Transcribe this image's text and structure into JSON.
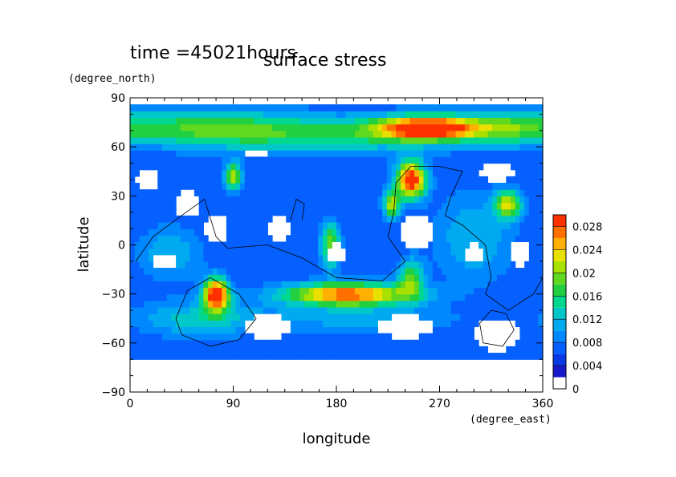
{
  "chart_data": {
    "type": "heatmap",
    "time_label": "time =45021hours",
    "title": "surface stress",
    "xlabel": "longitude",
    "ylabel": "latitude",
    "x_unit": "(degree_east)",
    "y_unit": "(degree_north)",
    "xlim": [
      0,
      360
    ],
    "ylim": [
      -90,
      90
    ],
    "x_ticks": [
      0,
      90,
      180,
      270,
      360
    ],
    "y_ticks": [
      -90,
      -60,
      -30,
      0,
      30,
      60,
      90
    ],
    "colorbar": {
      "min": 0,
      "max": 0.03,
      "tick_labels": [
        "0",
        "0.004",
        "0.008",
        "0.012",
        "0.016",
        "0.02",
        "0.024",
        "0.028"
      ],
      "tick_values": [
        0,
        0.004,
        0.008,
        0.012,
        0.016,
        0.02,
        0.024,
        0.028
      ],
      "colors": [
        "#ffffff",
        "#1818cc",
        "#0a3ae6",
        "#0560ff",
        "#0088ff",
        "#00aaf0",
        "#00c8c8",
        "#00d890",
        "#20d040",
        "#60d820",
        "#a8e000",
        "#e8e000",
        "#ffb000",
        "#ff7000",
        "#ff3000"
      ]
    },
    "data_extent_lat": [
      -70,
      85
    ],
    "field": {
      "background": 0.006,
      "blobs": [
        {
          "lon": 260,
          "lat": 72,
          "slon": 30,
          "slat": 5,
          "amp": 0.024
        },
        {
          "lon": 180,
          "lat": 68,
          "slon": 80,
          "slat": 8,
          "amp": 0.01
        },
        {
          "lon": 60,
          "lat": 72,
          "slon": 55,
          "slat": 8,
          "amp": 0.01
        },
        {
          "lon": 330,
          "lat": 72,
          "slon": 30,
          "slat": 7,
          "amp": 0.009
        },
        {
          "lon": 245,
          "lat": 40,
          "slon": 9,
          "slat": 8,
          "amp": 0.026
        },
        {
          "lon": 90,
          "lat": 42,
          "slon": 5,
          "slat": 6,
          "amp": 0.016
        },
        {
          "lon": 330,
          "lat": 25,
          "slon": 8,
          "slat": 6,
          "amp": 0.016
        },
        {
          "lon": 175,
          "lat": 0,
          "slon": 6,
          "slat": 10,
          "amp": 0.014
        },
        {
          "lon": 228,
          "lat": 25,
          "slon": 5,
          "slat": 6,
          "amp": 0.016
        },
        {
          "lon": 75,
          "lat": -30,
          "slon": 8,
          "slat": 7,
          "amp": 0.026
        },
        {
          "lon": 190,
          "lat": -30,
          "slon": 40,
          "slat": 5,
          "amp": 0.022
        },
        {
          "lon": 245,
          "lat": -20,
          "slon": 8,
          "slat": 8,
          "amp": 0.012
        },
        {
          "lon": 200,
          "lat": -45,
          "slon": 60,
          "slat": 6,
          "amp": 0.005
        },
        {
          "lon": 60,
          "lat": -45,
          "slon": 40,
          "slat": 8,
          "amp": 0.007
        },
        {
          "lon": 300,
          "lat": 5,
          "slon": 25,
          "slat": 20,
          "amp": 0.006
        },
        {
          "lon": 35,
          "lat": -5,
          "slon": 20,
          "slat": 12,
          "amp": 0.006
        }
      ],
      "holes": [
        {
          "lon": 15,
          "lat": 40,
          "slon": 10,
          "slat": 7
        },
        {
          "lon": 75,
          "lat": 10,
          "slon": 10,
          "slat": 10
        },
        {
          "lon": 130,
          "lat": 10,
          "slon": 12,
          "slat": 8
        },
        {
          "lon": 50,
          "lat": 25,
          "slon": 12,
          "slat": 8
        },
        {
          "lon": 320,
          "lat": 45,
          "slon": 15,
          "slat": 6
        },
        {
          "lon": 250,
          "lat": 8,
          "slon": 15,
          "slat": 12
        },
        {
          "lon": 180,
          "lat": -5,
          "slon": 10,
          "slat": 6
        },
        {
          "lon": 340,
          "lat": -5,
          "slon": 10,
          "slat": 8
        },
        {
          "lon": 120,
          "lat": -50,
          "slon": 20,
          "slat": 8
        },
        {
          "lon": 320,
          "lat": -55,
          "slon": 20,
          "slat": 10
        },
        {
          "lon": 240,
          "lat": -50,
          "slon": 25,
          "slat": 7
        },
        {
          "lon": 30,
          "lat": -10,
          "slon": 10,
          "slat": 4
        },
        {
          "lon": 110,
          "lat": 55,
          "slon": 12,
          "slat": 3
        },
        {
          "lon": 300,
          "lat": -5,
          "slon": 8,
          "slat": 6
        }
      ]
    },
    "outlines": [
      {
        "name": "continent-a",
        "points": [
          [
            5,
            -10
          ],
          [
            20,
            5
          ],
          [
            45,
            18
          ],
          [
            65,
            28
          ],
          [
            75,
            5
          ],
          [
            85,
            -2
          ],
          [
            120,
            0
          ],
          [
            150,
            -8
          ],
          [
            180,
            -20
          ],
          [
            220,
            -22
          ],
          [
            240,
            -10
          ],
          [
            225,
            5
          ],
          [
            230,
            20
          ],
          [
            232,
            38
          ],
          [
            245,
            48
          ],
          [
            270,
            48
          ],
          [
            290,
            45
          ],
          [
            280,
            30
          ],
          [
            275,
            18
          ],
          [
            290,
            12
          ],
          [
            310,
            0
          ],
          [
            315,
            -20
          ],
          [
            310,
            -30
          ],
          [
            330,
            -40
          ],
          [
            352,
            -30
          ],
          [
            360,
            -20
          ]
        ]
      },
      {
        "name": "continent-b",
        "points": [
          [
            40,
            -45
          ],
          [
            50,
            -28
          ],
          [
            70,
            -20
          ],
          [
            95,
            -30
          ],
          [
            110,
            -45
          ],
          [
            95,
            -58
          ],
          [
            70,
            -62
          ],
          [
            45,
            -55
          ],
          [
            40,
            -45
          ]
        ]
      },
      {
        "name": "continent-c",
        "points": [
          [
            305,
            -48
          ],
          [
            315,
            -40
          ],
          [
            328,
            -42
          ],
          [
            335,
            -52
          ],
          [
            325,
            -62
          ],
          [
            308,
            -60
          ],
          [
            305,
            -48
          ]
        ]
      },
      {
        "name": "continent-d",
        "points": [
          [
            140,
            15
          ],
          [
            145,
            28
          ],
          [
            152,
            25
          ],
          [
            150,
            15
          ]
        ]
      }
    ]
  }
}
